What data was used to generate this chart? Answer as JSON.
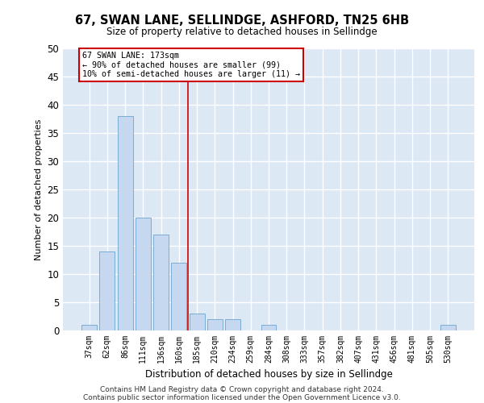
{
  "title": "67, SWAN LANE, SELLINDGE, ASHFORD, TN25 6HB",
  "subtitle": "Size of property relative to detached houses in Sellindge",
  "xlabel": "Distribution of detached houses by size in Sellindge",
  "ylabel": "Number of detached properties",
  "categories": [
    "37sqm",
    "62sqm",
    "86sqm",
    "111sqm",
    "136sqm",
    "160sqm",
    "185sqm",
    "210sqm",
    "234sqm",
    "259sqm",
    "284sqm",
    "308sqm",
    "333sqm",
    "357sqm",
    "382sqm",
    "407sqm",
    "431sqm",
    "456sqm",
    "481sqm",
    "505sqm",
    "530sqm"
  ],
  "values": [
    1,
    14,
    38,
    20,
    17,
    12,
    3,
    2,
    2,
    0,
    1,
    0,
    0,
    0,
    0,
    0,
    0,
    0,
    0,
    0,
    1
  ],
  "bar_color": "#c5d8f0",
  "bar_edge_color": "#7aadd4",
  "background_color": "#dde8f5",
  "grid_color": "#ffffff",
  "annotation_line1": "67 SWAN LANE: 173sqm",
  "annotation_line2": "← 90% of detached houses are smaller (99)",
  "annotation_line3": "10% of semi-detached houses are larger (11) →",
  "vline_color": "#cc0000",
  "annotation_box_edgecolor": "#cc0000",
  "ylim": [
    0,
    50
  ],
  "yticks": [
    0,
    5,
    10,
    15,
    20,
    25,
    30,
    35,
    40,
    45,
    50
  ],
  "footer1": "Contains HM Land Registry data © Crown copyright and database right 2024.",
  "footer2": "Contains public sector information licensed under the Open Government Licence v3.0.",
  "fig_width": 6.0,
  "fig_height": 5.0,
  "dpi": 100
}
